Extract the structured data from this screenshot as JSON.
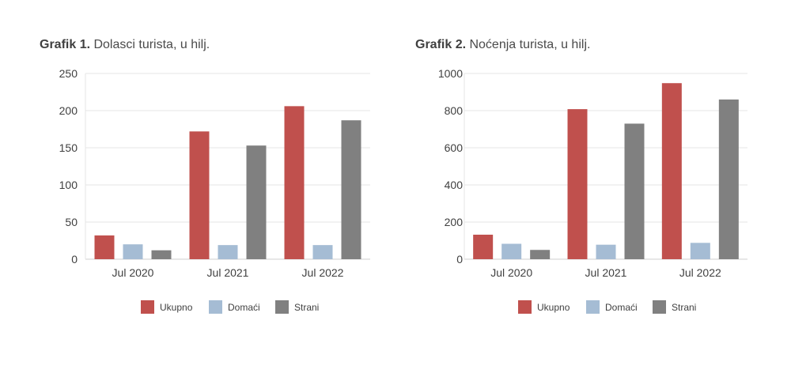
{
  "colors": {
    "ukupno": "#c0504d",
    "domaci": "#a5bcd4",
    "strani": "#808080",
    "grid": "#e6e6e6",
    "axis": "#cfcfcf"
  },
  "chart_data": [
    {
      "type": "bar",
      "title_prefix": "Grafik 1.",
      "title_rest": " Dolasci turista, u hilj.",
      "categories": [
        "Jul 2020",
        "Jul 2021",
        "Jul 2022"
      ],
      "series": [
        {
          "name": "Ukupno",
          "color_key": "ukupno",
          "values": [
            32,
            172,
            206
          ]
        },
        {
          "name": "Domaći",
          "color_key": "domaci",
          "values": [
            20,
            19,
            19
          ]
        },
        {
          "name": "Strani",
          "color_key": "strani",
          "values": [
            12,
            153,
            187
          ]
        }
      ],
      "ylim": [
        0,
        250
      ],
      "yticks": [
        0,
        50,
        100,
        150,
        200,
        250
      ],
      "xlabel": "",
      "ylabel": "",
      "grid": true,
      "legend_position": "bottom"
    },
    {
      "type": "bar",
      "title_prefix": "Grafik 2.",
      "title_rest": " Noćenja turista, u hilj.",
      "categories": [
        "Jul 2020",
        "Jul 2021",
        "Jul 2022"
      ],
      "series": [
        {
          "name": "Ukupno",
          "color_key": "ukupno",
          "values": [
            132,
            808,
            948
          ]
        },
        {
          "name": "Domaći",
          "color_key": "domaci",
          "values": [
            83,
            78,
            88
          ]
        },
        {
          "name": "Strani",
          "color_key": "strani",
          "values": [
            50,
            730,
            860
          ]
        }
      ],
      "ylim": [
        0,
        1000
      ],
      "yticks": [
        0,
        200,
        400,
        600,
        800,
        1000
      ],
      "xlabel": "",
      "ylabel": "",
      "grid": true,
      "legend_position": "bottom"
    }
  ]
}
